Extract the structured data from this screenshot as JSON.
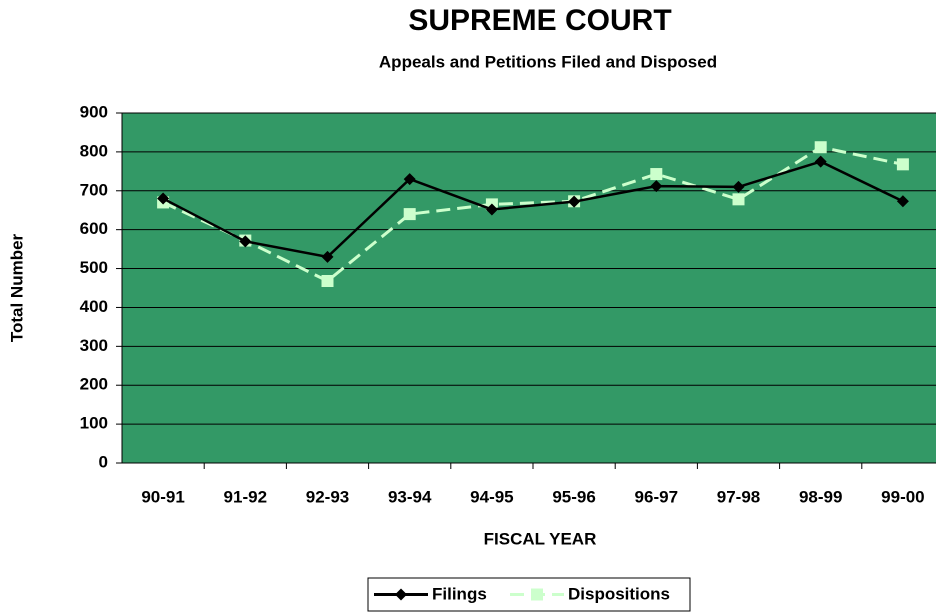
{
  "chart_data": {
    "type": "line",
    "title": "SUPREME COURT",
    "subtitle": "Appeals and Petitions Filed and Disposed",
    "x_label": "FISCAL YEAR",
    "y_label": "Total Number",
    "categories": [
      "90-91",
      "91-92",
      "92-93",
      "93-94",
      "94-95",
      "95-96",
      "96-97",
      "97-98",
      "98-99",
      "99-00"
    ],
    "series": [
      {
        "name": "Filings",
        "color": "#000000",
        "values": [
          680,
          570,
          530,
          730,
          652,
          672,
          712,
          710,
          775,
          673
        ]
      },
      {
        "name": "Dispositions",
        "color": "#ccffcc",
        "values": [
          670,
          572,
          468,
          640,
          665,
          673,
          743,
          678,
          812,
          768
        ]
      }
    ],
    "ylim": [
      0,
      900
    ],
    "yticks": [
      0,
      100,
      200,
      300,
      400,
      500,
      600,
      700,
      800,
      900
    ],
    "grid": true,
    "plot_background": "#339966",
    "legend": "bottom"
  }
}
